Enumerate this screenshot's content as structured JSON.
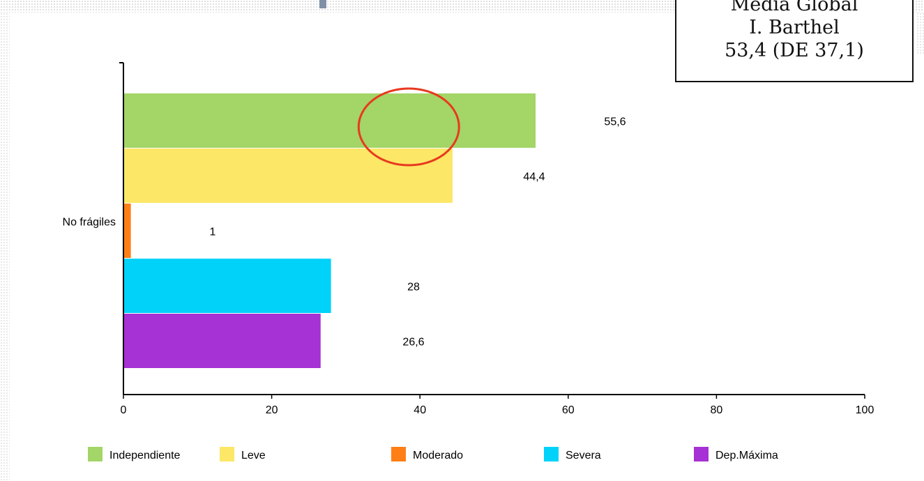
{
  "info_box": {
    "line1": "Media Global",
    "line2": "I. Barthel",
    "line3": "53,4 (DE 37,1)"
  },
  "chart_data": {
    "type": "bar",
    "orientation": "horizontal",
    "title": "",
    "xlabel": "",
    "ylabel": "",
    "xlim": [
      0,
      100
    ],
    "x_ticks": [
      0,
      20,
      40,
      60,
      80,
      100
    ],
    "categories": [
      "No frágiles"
    ],
    "series": [
      {
        "name": "Independiente",
        "values": [
          55.6
        ],
        "label": "55,6",
        "color": "#a3d567"
      },
      {
        "name": "Leve",
        "values": [
          44.4
        ],
        "label": "44,4",
        "color": "#fde766"
      },
      {
        "name": "Moderado",
        "values": [
          1
        ],
        "label": "1",
        "color": "#ff7f17"
      },
      {
        "name": "Severa",
        "values": [
          28
        ],
        "label": "28",
        "color": "#00d2fa"
      },
      {
        "name": "Dep.Máxima",
        "values": [
          26.6
        ],
        "label": "26,6",
        "color": "#a631d4"
      }
    ],
    "legend_position": "bottom",
    "grid": false,
    "annotation": {
      "shape": "ellipse",
      "color": "#e8391f",
      "center_x_value": 38.5,
      "series": "Independiente"
    }
  }
}
